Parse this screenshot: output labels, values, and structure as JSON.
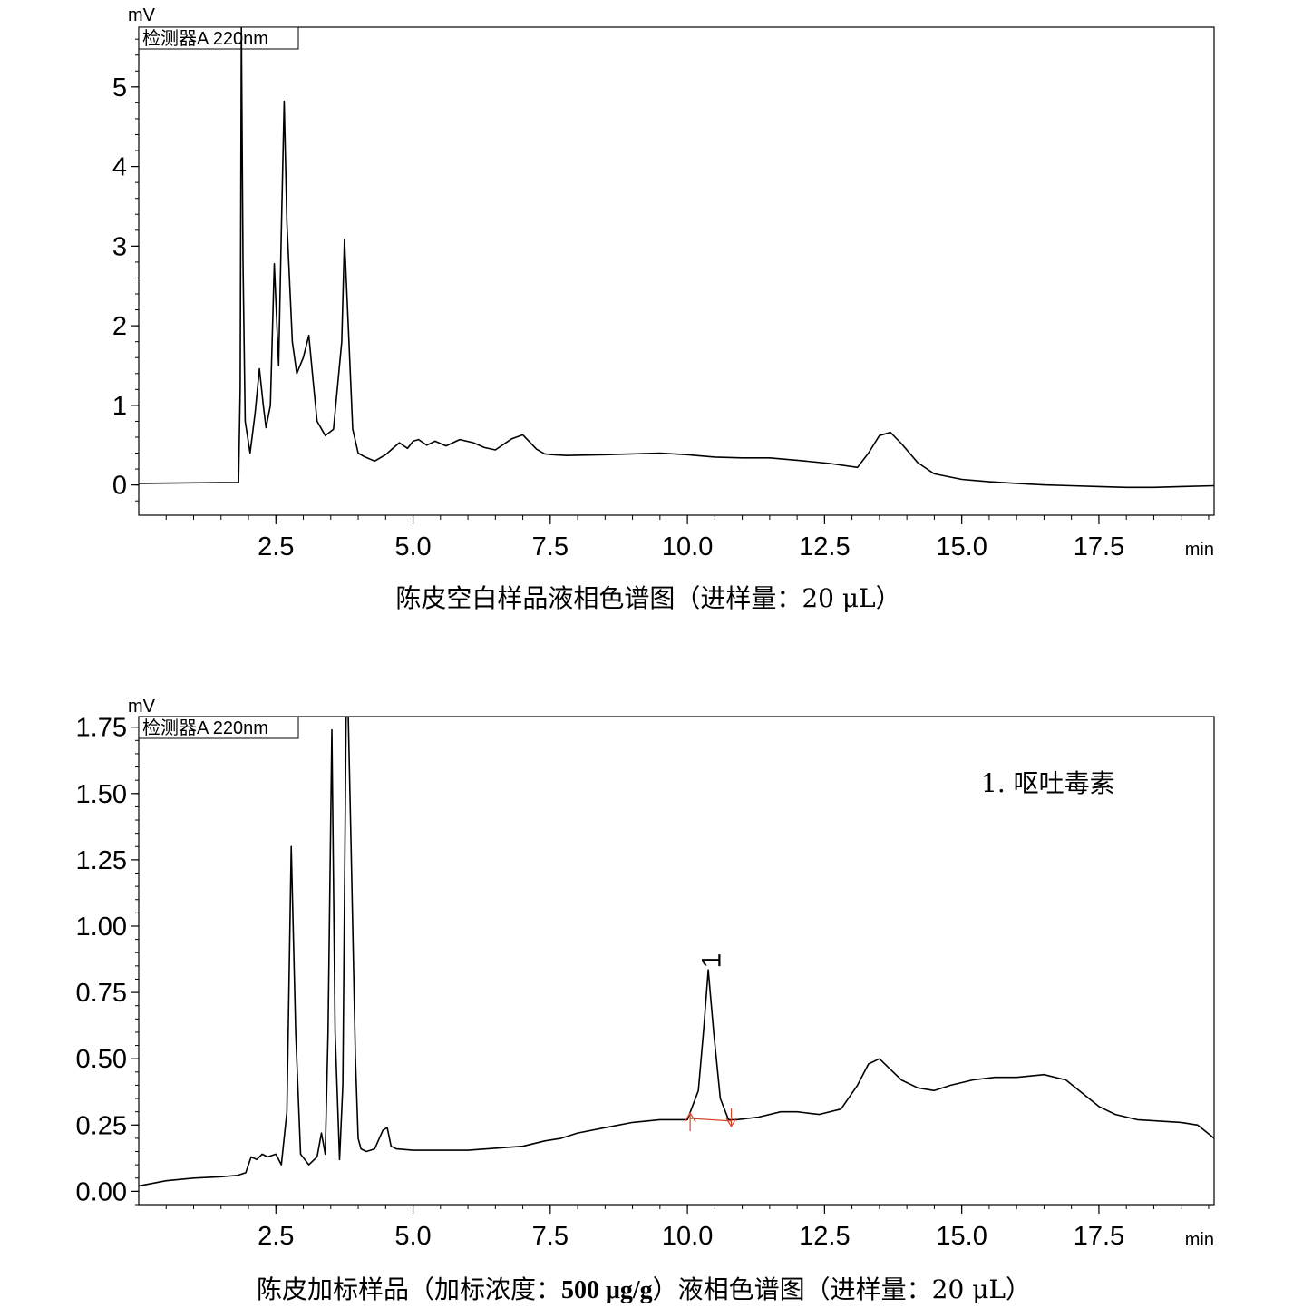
{
  "chart_data": [
    {
      "type": "line",
      "title": "陈皮空白样品液相色谱图（进样量：20 μL）",
      "title_parts": [
        {
          "text": "陈皮空白样品液相色谱图（进样量：20 μL）",
          "bold": false
        }
      ],
      "ylabel": "mV",
      "xlabel": "min",
      "detector_label": "检测器A 220nm",
      "xlim": [
        0.0,
        19.6
      ],
      "ylim": [
        -0.38,
        5.75
      ],
      "x_ticks": [
        2.5,
        5.0,
        7.5,
        10.0,
        12.5,
        15.0,
        17.5
      ],
      "x_tick_labels": [
        "2.5",
        "5.0",
        "7.5",
        "10.0",
        "12.5",
        "15.0",
        "17.5"
      ],
      "y_ticks": [
        0,
        1,
        2,
        3,
        4,
        5
      ],
      "y_tick_labels": [
        "0",
        "1",
        "2",
        "3",
        "4",
        "5"
      ],
      "grid": false,
      "series": [
        {
          "x": [
            0.0,
            1.5,
            1.82,
            1.85,
            1.87,
            1.9,
            1.94,
            2.03,
            2.12,
            2.2,
            2.27,
            2.32,
            2.4,
            2.47,
            2.55,
            2.6,
            2.65,
            2.7,
            2.76,
            2.8,
            2.88,
            3.0,
            3.1,
            3.18,
            3.25,
            3.4,
            3.55,
            3.7,
            3.75,
            3.82,
            3.9,
            4.0,
            4.1,
            4.3,
            4.5,
            4.6,
            4.75,
            4.9,
            5.0,
            5.1,
            5.25,
            5.4,
            5.6,
            5.85,
            6.1,
            6.3,
            6.5,
            6.8,
            7.0,
            7.25,
            7.4,
            7.55,
            7.8,
            8.5,
            9.5,
            10.0,
            10.5,
            11.0,
            11.5,
            12.0,
            12.6,
            13.1,
            13.3,
            13.5,
            13.7,
            13.9,
            14.2,
            14.5,
            15.0,
            15.5,
            16.0,
            16.5,
            17.0,
            17.5,
            18.0,
            18.5,
            19.0,
            19.6
          ],
          "y": [
            0.02,
            0.03,
            0.03,
            1.2,
            5.75,
            2.8,
            0.8,
            0.4,
            0.9,
            1.46,
            1.0,
            0.72,
            1.0,
            2.78,
            1.5,
            3.2,
            4.82,
            3.3,
            2.4,
            1.8,
            1.4,
            1.6,
            1.88,
            1.3,
            0.8,
            0.62,
            0.7,
            1.8,
            3.09,
            2.0,
            0.7,
            0.4,
            0.36,
            0.3,
            0.38,
            0.44,
            0.53,
            0.46,
            0.55,
            0.57,
            0.5,
            0.55,
            0.49,
            0.57,
            0.53,
            0.47,
            0.44,
            0.58,
            0.63,
            0.45,
            0.39,
            0.38,
            0.37,
            0.38,
            0.4,
            0.38,
            0.35,
            0.34,
            0.34,
            0.31,
            0.27,
            0.22,
            0.4,
            0.62,
            0.66,
            0.52,
            0.28,
            0.14,
            0.07,
            0.04,
            0.02,
            0.0,
            -0.01,
            -0.02,
            -0.03,
            -0.03,
            -0.02,
            -0.01
          ]
        }
      ],
      "annotations": []
    },
    {
      "type": "line",
      "title": "陈皮加标样品（加标浓度：500 μg/g）液相色谱图（进样量：20 μL）",
      "title_parts": [
        {
          "text": "陈皮加标样品（加标浓度：",
          "bold": false
        },
        {
          "text": "500 μg/g",
          "bold": true
        },
        {
          "text": "）液相色谱图（进样量：20 μL）",
          "bold": false
        }
      ],
      "ylabel": "mV",
      "xlabel": "min",
      "detector_label": "检测器A 220nm",
      "xlim": [
        0.0,
        19.6
      ],
      "ylim": [
        -0.05,
        1.79
      ],
      "x_ticks": [
        2.5,
        5.0,
        7.5,
        10.0,
        12.5,
        15.0,
        17.5
      ],
      "x_tick_labels": [
        "2.5",
        "5.0",
        "7.5",
        "10.0",
        "12.5",
        "15.0",
        "17.5"
      ],
      "y_ticks": [
        0.0,
        0.25,
        0.5,
        0.75,
        1.0,
        1.25,
        1.5,
        1.75
      ],
      "y_tick_labels": [
        "0.00",
        "0.25",
        "0.50",
        "0.75",
        "1.00",
        "1.25",
        "1.50",
        "1.75"
      ],
      "grid": false,
      "series": [
        {
          "x": [
            0.0,
            0.5,
            1.0,
            1.5,
            1.8,
            1.95,
            2.05,
            2.15,
            2.25,
            2.35,
            2.5,
            2.6,
            2.7,
            2.78,
            2.86,
            2.95,
            3.1,
            3.25,
            3.33,
            3.4,
            3.45,
            3.52,
            3.58,
            3.66,
            3.72,
            3.78,
            3.82,
            3.87,
            3.95,
            4.0,
            4.05,
            4.15,
            4.3,
            4.45,
            4.53,
            4.6,
            4.7,
            5.0,
            6.0,
            7.0,
            7.4,
            7.7,
            8.0,
            8.5,
            9.0,
            9.5,
            10.0,
            10.2,
            10.3,
            10.38,
            10.48,
            10.6,
            10.75,
            10.9,
            11.3,
            11.7,
            12.0,
            12.4,
            12.8,
            13.1,
            13.3,
            13.5,
            13.7,
            13.9,
            14.2,
            14.5,
            14.8,
            15.2,
            15.6,
            16.0,
            16.5,
            16.9,
            17.2,
            17.5,
            17.8,
            18.2,
            18.6,
            19.0,
            19.3,
            19.6
          ],
          "y": [
            0.02,
            0.04,
            0.05,
            0.055,
            0.06,
            0.07,
            0.13,
            0.12,
            0.14,
            0.13,
            0.14,
            0.1,
            0.3,
            1.3,
            0.6,
            0.14,
            0.1,
            0.13,
            0.22,
            0.14,
            0.6,
            1.74,
            0.6,
            0.12,
            0.4,
            1.79,
            1.79,
            1.3,
            0.5,
            0.2,
            0.16,
            0.15,
            0.16,
            0.23,
            0.24,
            0.17,
            0.16,
            0.155,
            0.155,
            0.17,
            0.19,
            0.2,
            0.22,
            0.24,
            0.26,
            0.27,
            0.27,
            0.38,
            0.62,
            0.835,
            0.6,
            0.35,
            0.27,
            0.27,
            0.28,
            0.3,
            0.3,
            0.29,
            0.31,
            0.4,
            0.48,
            0.5,
            0.46,
            0.42,
            0.39,
            0.38,
            0.4,
            0.42,
            0.43,
            0.43,
            0.44,
            0.42,
            0.37,
            0.32,
            0.29,
            0.27,
            0.265,
            0.26,
            0.25,
            0.2
          ]
        }
      ],
      "baseline": {
        "x": [
          10.05,
          10.8
        ],
        "y": [
          0.275,
          0.265
        ],
        "color": "#d9462f"
      },
      "peak_label": {
        "text": "1",
        "x": 10.6,
        "y": 0.87
      },
      "annotations": [
        "1.  呕吐毒素"
      ]
    }
  ]
}
